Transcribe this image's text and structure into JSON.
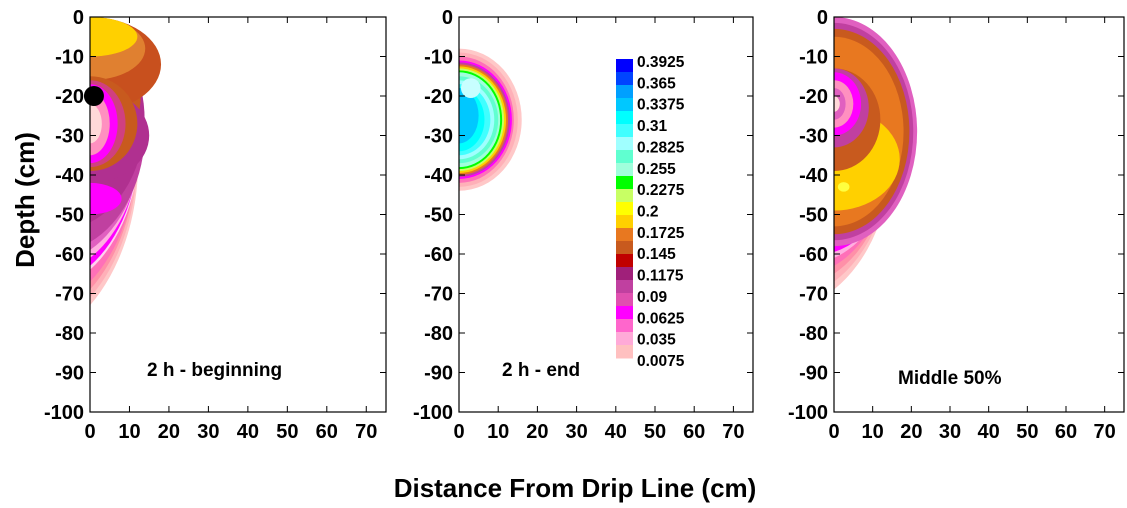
{
  "chart_data": {
    "type": "contour",
    "xlabel": "Distance From Drip Line (cm)",
    "ylabel": "Depth (cm)",
    "xlim": [
      0,
      75
    ],
    "ylim": [
      -100,
      0
    ],
    "xticks": [
      "0",
      "10",
      "20",
      "30",
      "40",
      "50",
      "60",
      "70"
    ],
    "yticks": [
      "0",
      "-10",
      "-20",
      "-30",
      "-40",
      "-50",
      "-60",
      "-70",
      "-80",
      "-90",
      "-100"
    ],
    "legend": {
      "levels": [
        "0.3925",
        "0.365",
        "0.3375",
        "0.31",
        "0.2825",
        "0.255",
        "0.2275",
        "0.2",
        "0.1725",
        "0.145",
        "0.1175",
        "0.09",
        "0.0625",
        "0.035",
        "0.0075"
      ],
      "colors": [
        "#0000ff",
        "#0044ff",
        "#00a0ff",
        "#00c8ff",
        "#00ffff",
        "#40ffff",
        "#a0ffff",
        "#60ffd0",
        "#a0ffdc",
        "#00ff00",
        "#c8ff64",
        "#ffff00",
        "#ffd000",
        "#e87820",
        "#c85a1e",
        "#c00000",
        "#a0207a",
        "#c040a0",
        "#e050b0",
        "#ff00ff",
        "#ff66cc",
        "#ffaad8",
        "#ffc0c0"
      ]
    },
    "panels": [
      {
        "annotation": "2 h - beginning",
        "emitter_depth": -20,
        "emitter_x": 1
      },
      {
        "annotation": "2 h - end"
      },
      {
        "annotation": "Middle 50%"
      }
    ]
  }
}
